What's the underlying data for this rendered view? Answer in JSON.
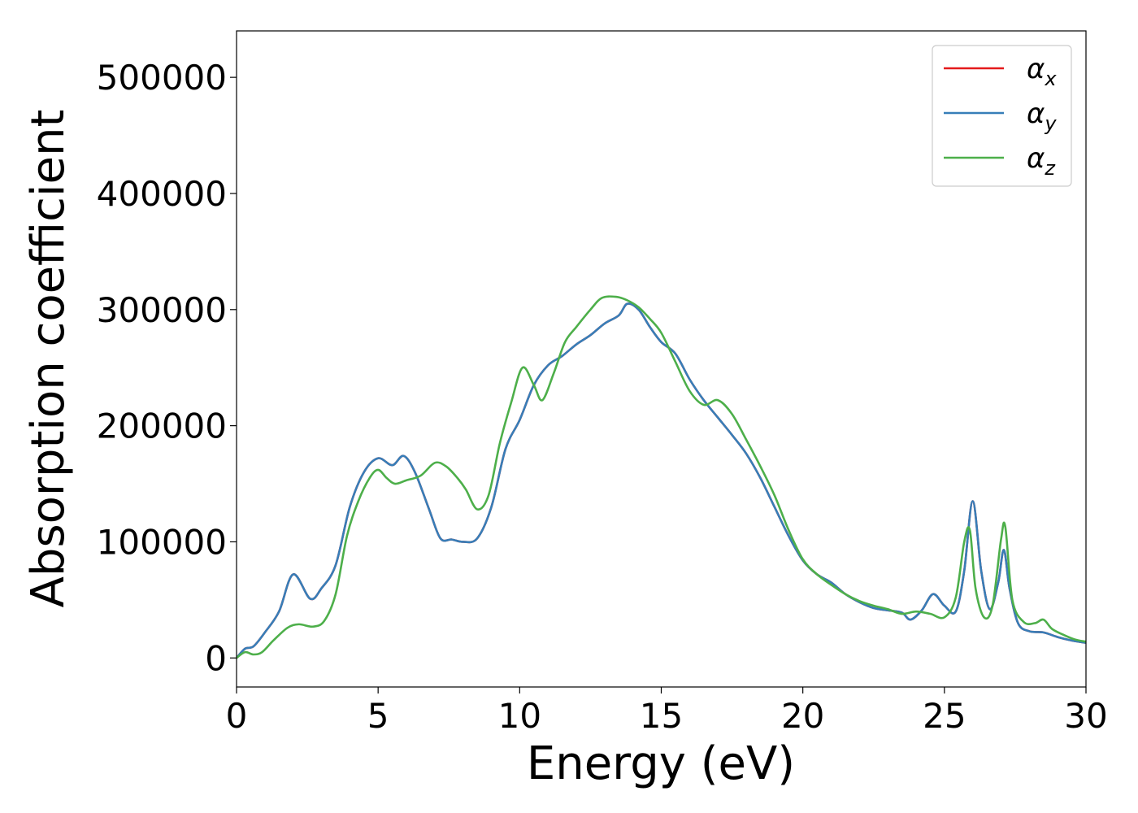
{
  "chart_data": {
    "type": "line",
    "xlabel": "Energy (eV)",
    "ylabel": "Absorption coefficient",
    "xlim": [
      0,
      30
    ],
    "ylim": [
      -25000,
      540000
    ],
    "xticks": [
      0,
      5,
      10,
      15,
      20,
      25,
      30
    ],
    "xtick_labels": [
      "0",
      "5",
      "10",
      "15",
      "20",
      "25",
      "30"
    ],
    "yticks": [
      0,
      100000,
      200000,
      300000,
      400000,
      500000
    ],
    "ytick_labels": [
      "0",
      "100000",
      "200000",
      "300000",
      "400000",
      "500000"
    ],
    "grid": false,
    "legend_position": "top-right",
    "series": [
      {
        "name": "α_x",
        "legend_base": "α",
        "legend_sub": "x",
        "color": "#e41a1c",
        "x": [
          0,
          0.3,
          0.6,
          1.0,
          1.5,
          2.0,
          2.6,
          3.0,
          3.5,
          4.0,
          4.5,
          5.0,
          5.5,
          5.9,
          6.3,
          6.8,
          7.2,
          7.6,
          8.0,
          8.5,
          9.0,
          9.5,
          10.0,
          10.5,
          11.0,
          11.5,
          12.0,
          12.5,
          13.0,
          13.5,
          13.8,
          14.2,
          14.6,
          15.0,
          15.5,
          16.0,
          16.5,
          17.0,
          17.5,
          18.0,
          18.5,
          19.0,
          19.5,
          20.0,
          20.5,
          21.0,
          21.5,
          22.0,
          22.5,
          23.0,
          23.5,
          23.8,
          24.2,
          24.6,
          25.0,
          25.4,
          25.7,
          26.0,
          26.3,
          26.6,
          26.9,
          27.1,
          27.3,
          27.6,
          28.0,
          28.5,
          29.0,
          29.5,
          30.0
        ],
        "y": [
          0,
          8000,
          10000,
          22000,
          40000,
          72000,
          51000,
          60000,
          80000,
          130000,
          160000,
          172000,
          166000,
          174000,
          160000,
          128000,
          103000,
          102000,
          100000,
          103000,
          130000,
          180000,
          205000,
          235000,
          252000,
          260000,
          270000,
          278000,
          288000,
          295000,
          305000,
          300000,
          285000,
          272000,
          262000,
          240000,
          222000,
          207000,
          192000,
          176000,
          155000,
          130000,
          105000,
          84000,
          72000,
          65000,
          55000,
          48000,
          43000,
          41000,
          39000,
          33000,
          41000,
          55000,
          45000,
          40000,
          75000,
          135000,
          75000,
          42000,
          65000,
          93000,
          60000,
          30000,
          23000,
          22000,
          18000,
          15000,
          13000
        ]
      },
      {
        "name": "α_y",
        "legend_base": "α",
        "legend_sub": "y",
        "color": "#377eb8",
        "x": [
          0,
          0.3,
          0.6,
          1.0,
          1.5,
          2.0,
          2.6,
          3.0,
          3.5,
          4.0,
          4.5,
          5.0,
          5.5,
          5.9,
          6.3,
          6.8,
          7.2,
          7.6,
          8.0,
          8.5,
          9.0,
          9.5,
          10.0,
          10.5,
          11.0,
          11.5,
          12.0,
          12.5,
          13.0,
          13.5,
          13.8,
          14.2,
          14.6,
          15.0,
          15.5,
          16.0,
          16.5,
          17.0,
          17.5,
          18.0,
          18.5,
          19.0,
          19.5,
          20.0,
          20.5,
          21.0,
          21.5,
          22.0,
          22.5,
          23.0,
          23.5,
          23.8,
          24.2,
          24.6,
          25.0,
          25.4,
          25.7,
          26.0,
          26.3,
          26.6,
          26.9,
          27.1,
          27.3,
          27.6,
          28.0,
          28.5,
          29.0,
          29.5,
          30.0
        ],
        "y": [
          0,
          8000,
          10000,
          22000,
          40000,
          72000,
          51000,
          60000,
          80000,
          130000,
          160000,
          172000,
          166000,
          174000,
          160000,
          128000,
          103000,
          102000,
          100000,
          103000,
          130000,
          180000,
          205000,
          235000,
          252000,
          260000,
          270000,
          278000,
          288000,
          295000,
          305000,
          300000,
          285000,
          272000,
          262000,
          240000,
          222000,
          207000,
          192000,
          176000,
          155000,
          130000,
          105000,
          84000,
          72000,
          65000,
          55000,
          48000,
          43000,
          41000,
          39000,
          33000,
          41000,
          55000,
          45000,
          40000,
          75000,
          135000,
          75000,
          42000,
          65000,
          93000,
          60000,
          30000,
          23000,
          22000,
          18000,
          15000,
          13000
        ]
      },
      {
        "name": "α_z",
        "legend_base": "α",
        "legend_sub": "z",
        "color": "#4daf4a",
        "x": [
          0,
          0.3,
          0.6,
          0.9,
          1.3,
          1.8,
          2.2,
          2.7,
          3.1,
          3.5,
          3.9,
          4.3,
          4.7,
          5.0,
          5.3,
          5.6,
          6.0,
          6.5,
          7.0,
          7.4,
          7.8,
          8.1,
          8.5,
          8.9,
          9.3,
          9.7,
          10.1,
          10.5,
          10.8,
          11.2,
          11.6,
          12.0,
          12.5,
          12.9,
          13.4,
          13.8,
          14.2,
          14.6,
          15.0,
          15.5,
          16.0,
          16.5,
          17.0,
          17.5,
          18.0,
          18.5,
          19.0,
          19.5,
          20.0,
          20.5,
          21.0,
          21.5,
          22.0,
          22.5,
          23.0,
          23.5,
          24.0,
          24.5,
          25.0,
          25.4,
          25.7,
          25.9,
          26.1,
          26.4,
          26.7,
          27.0,
          27.15,
          27.4,
          27.8,
          28.2,
          28.5,
          28.8,
          29.2,
          29.6,
          30.0
        ],
        "y": [
          0,
          5000,
          3000,
          5000,
          15000,
          26000,
          29000,
          27000,
          32000,
          55000,
          105000,
          135000,
          155000,
          162000,
          155000,
          150000,
          153000,
          157000,
          168000,
          165000,
          155000,
          145000,
          128000,
          140000,
          185000,
          220000,
          250000,
          235000,
          222000,
          245000,
          272000,
          285000,
          300000,
          310000,
          311000,
          308000,
          302000,
          292000,
          280000,
          255000,
          230000,
          218000,
          222000,
          210000,
          188000,
          165000,
          140000,
          110000,
          85000,
          72000,
          63000,
          55000,
          49000,
          45000,
          42000,
          38000,
          40000,
          38000,
          35000,
          52000,
          100000,
          110000,
          60000,
          35000,
          45000,
          102000,
          113000,
          50000,
          31000,
          30000,
          33000,
          25000,
          20000,
          16000,
          14000
        ]
      }
    ]
  }
}
